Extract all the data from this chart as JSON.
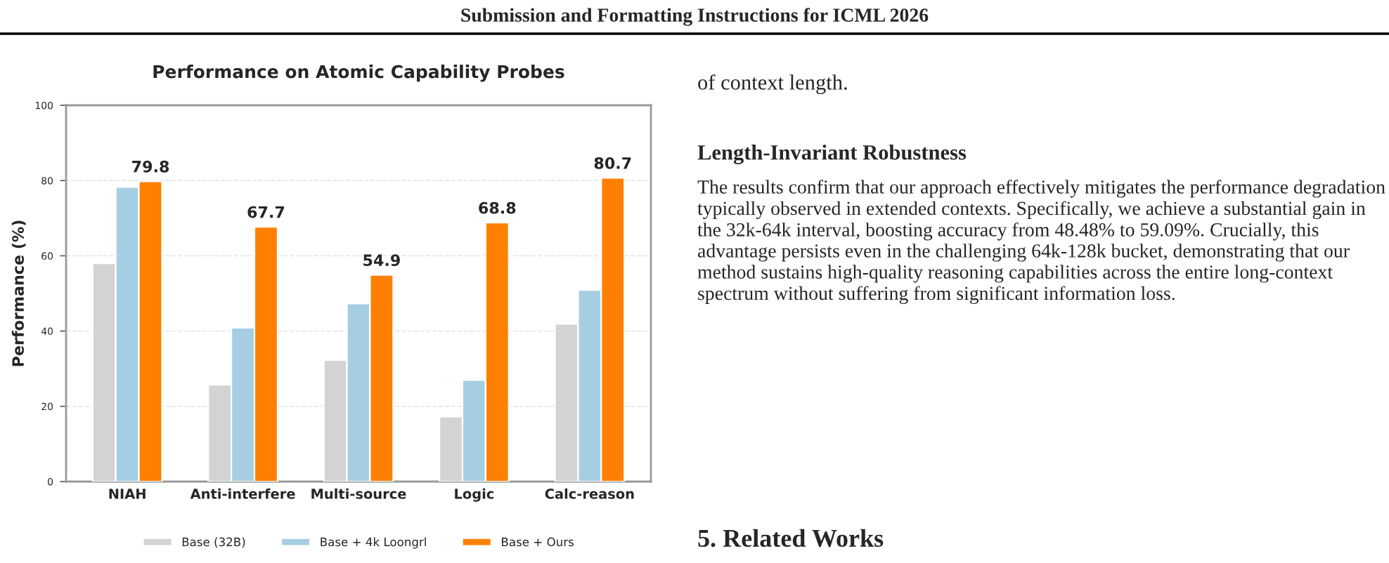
{
  "chart_data": {
    "type": "bar",
    "title": "Performance on Atomic Capability Probes",
    "ylabel": "Performance (%)",
    "categories": [
      "NIAH",
      "Anti-interfere",
      "Multi-source",
      "Logic",
      "Calc-reason"
    ],
    "series": [
      {
        "name": "Base (32B)",
        "color": "#d3d3d3",
        "values": [
          58.0,
          25.7,
          32.3,
          17.3,
          41.9
        ]
      },
      {
        "name": "Base + 4k Loongrl",
        "color": "#a6cee3",
        "values": [
          78.3,
          40.9,
          47.3,
          27.0,
          50.9
        ]
      },
      {
        "name": "Base + Ours",
        "color": "#ff7f00",
        "values": [
          79.8,
          67.7,
          54.9,
          68.8,
          80.7
        ],
        "value_labels": [
          "79.8",
          "67.7",
          "54.9",
          "68.8",
          "80.7"
        ]
      }
    ],
    "ylim": [
      0,
      100
    ],
    "yticks": [
      0,
      20,
      40,
      60,
      80,
      100
    ],
    "grid": "y",
    "legend": "bottom",
    "annotations": [
      "Submission and Formatting Instructions for ICML 2026",
      "of context length.",
      "Length-Invariant Robustness",
      "The results confirm that our approach effectively mitigates the performance degradation typically observed in extended contexts. Specifically, we achieve a substantial gain in the 32k-64k interval, boosting accuracy from 48.48% to 59.09%. Crucially, this advantage persists even in the challenging 64k-128k bucket, demonstrating that our method sustains high-quality reasoning capabilities across the entire long-context spectrum without suffering from significant information loss.",
      "5. Related Works"
    ]
  }
}
